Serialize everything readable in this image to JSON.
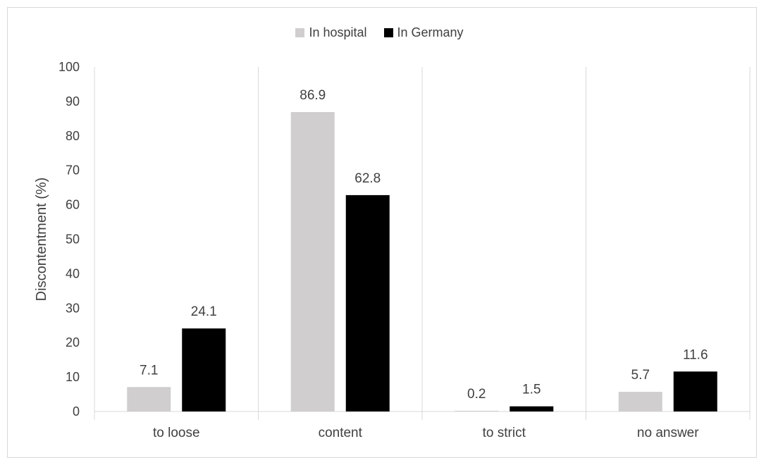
{
  "chart_data": {
    "type": "bar",
    "categories": [
      "to loose",
      "content",
      "to strict",
      "no answer"
    ],
    "series": [
      {
        "name": "In hospital",
        "values": [
          7.1,
          86.9,
          0.2,
          5.7
        ],
        "color": "#d0cece"
      },
      {
        "name": "In Germany",
        "values": [
          24.1,
          62.8,
          1.5,
          11.6
        ],
        "color": "#000000"
      }
    ],
    "value_labels": {
      "In hospital": [
        "7.1",
        "86.9",
        "0.2",
        "5.7"
      ],
      "In Germany": [
        "24.1",
        "62.8",
        "1.5",
        "11.6"
      ]
    },
    "ylabel": "Discontentment (%)",
    "xlabel": "",
    "ylim": [
      0,
      100
    ],
    "yticks": [
      "0",
      "10",
      "20",
      "30",
      "40",
      "50",
      "60",
      "70",
      "80",
      "90",
      "100"
    ],
    "legend_position": "top-center",
    "gridlines": "vertical separators between categories"
  }
}
